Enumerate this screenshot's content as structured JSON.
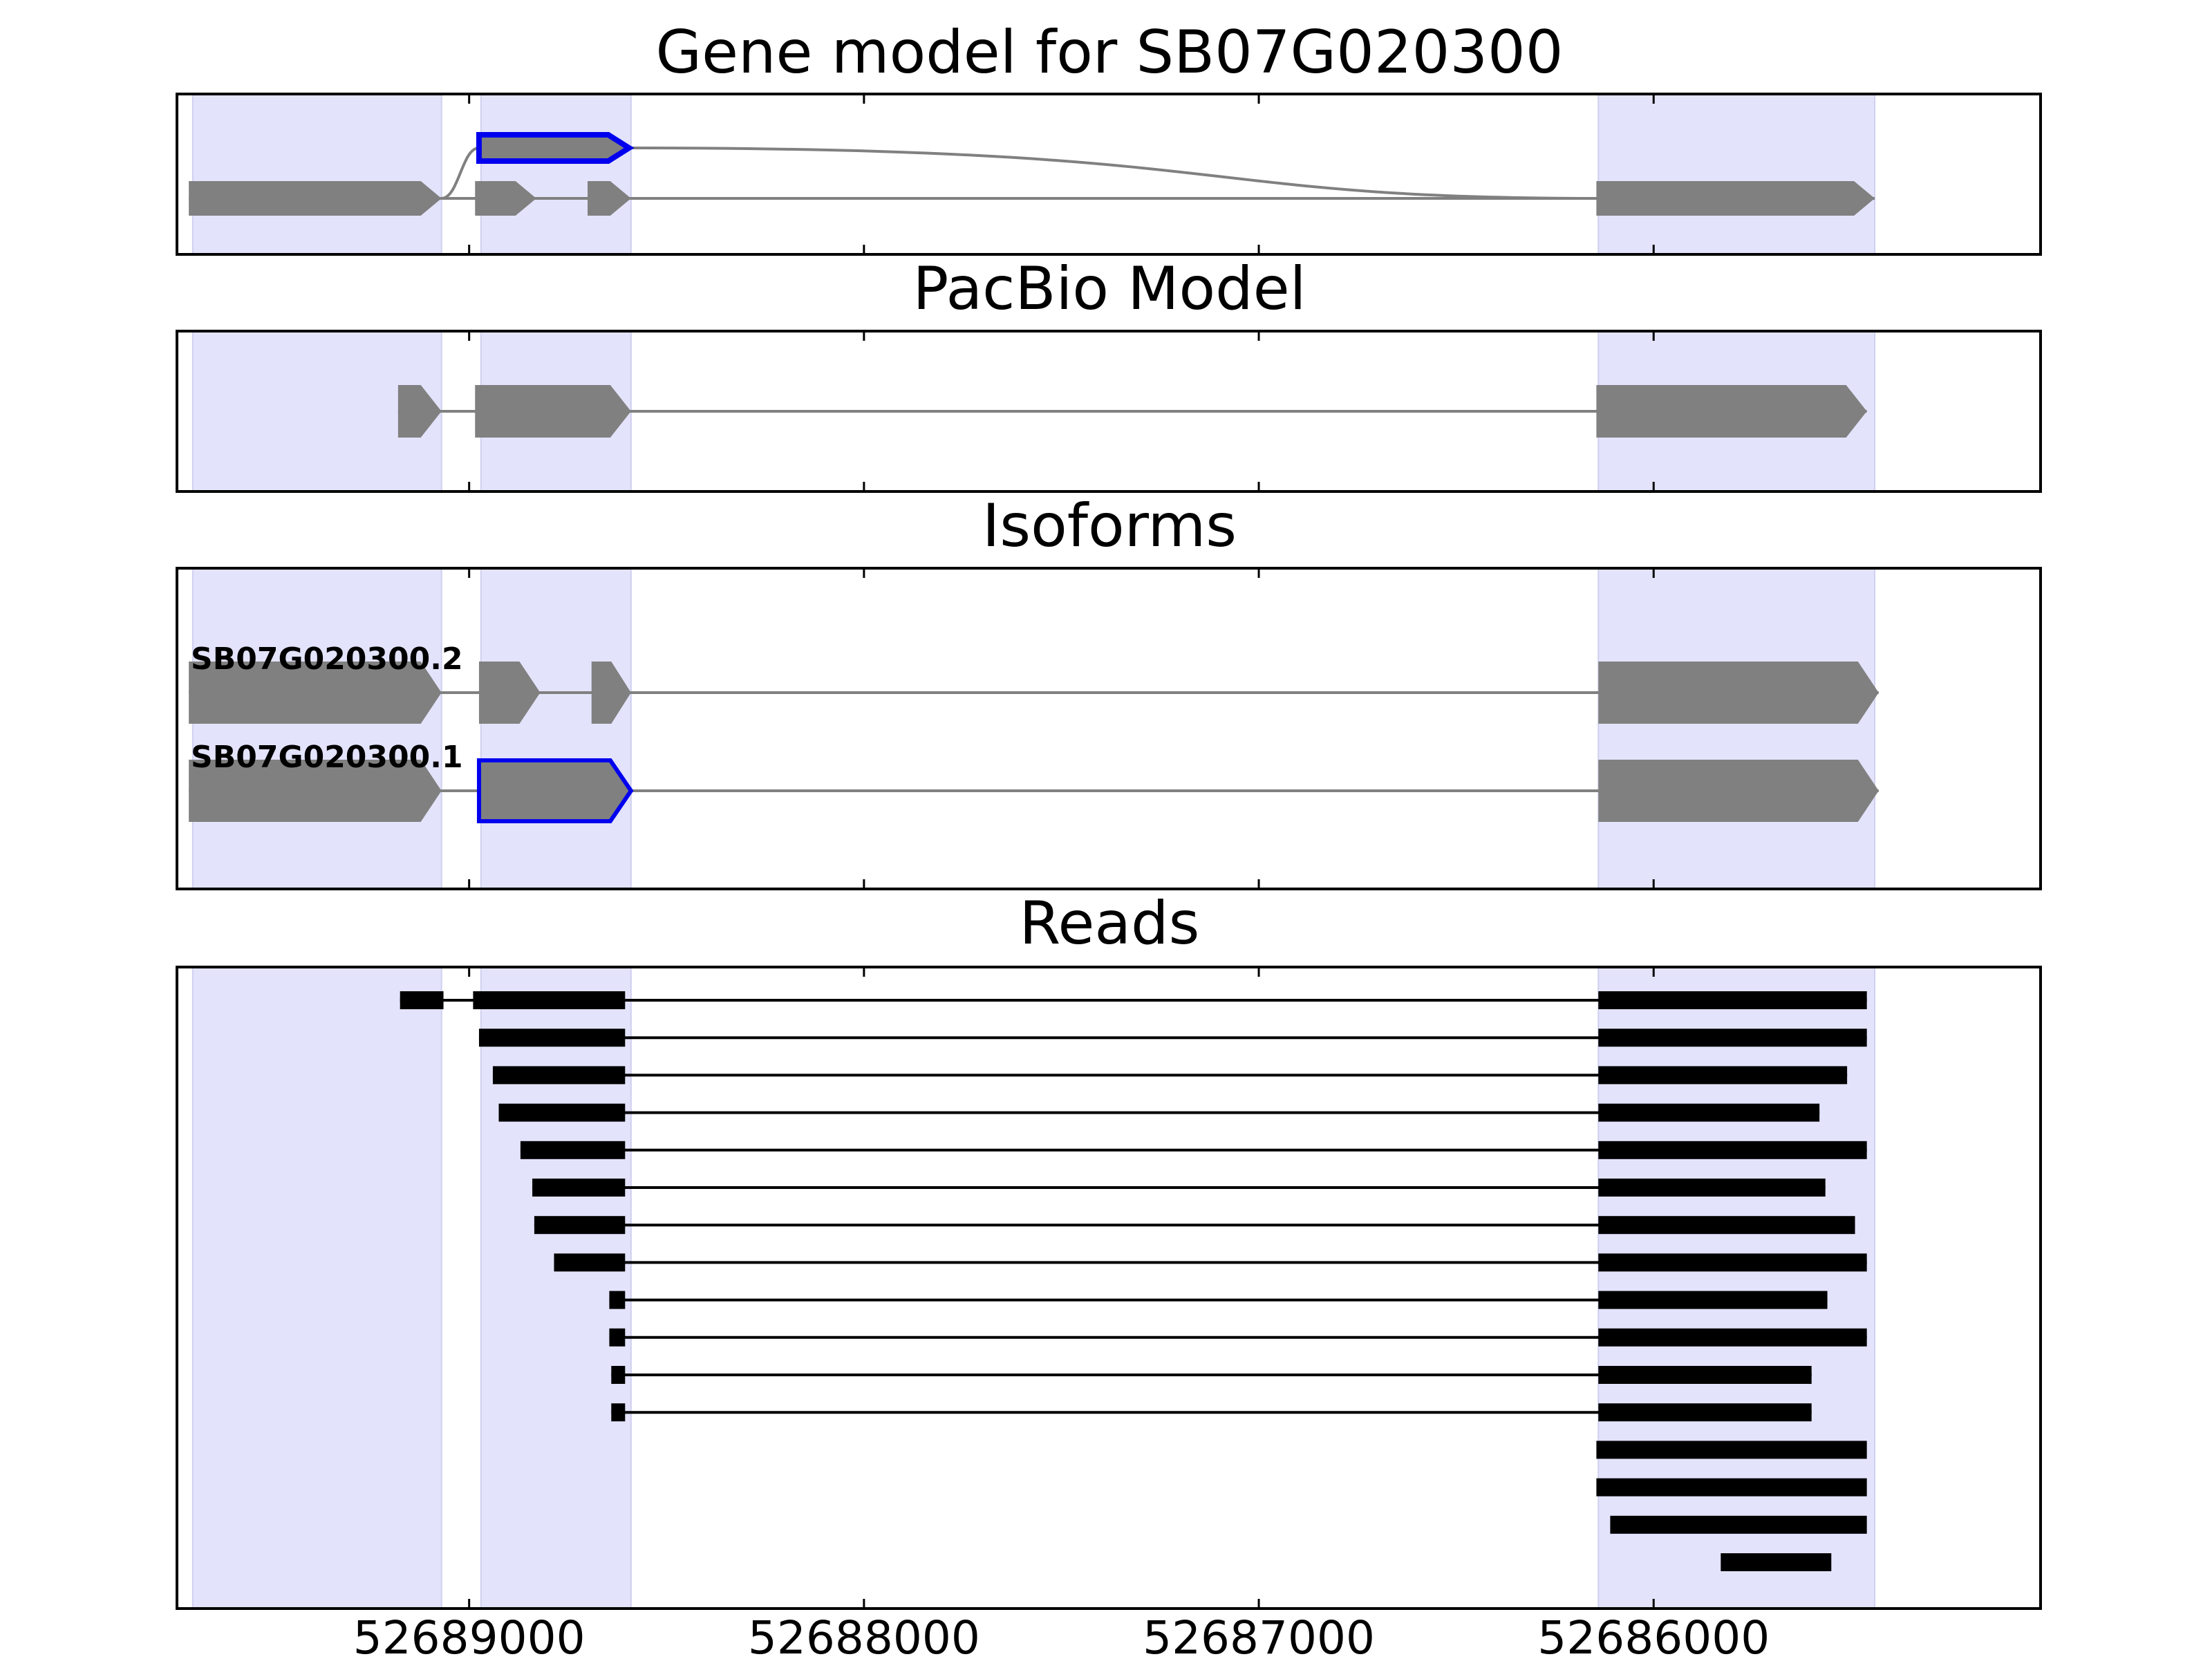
{
  "chart_data": {
    "type": "gene-model-tracks",
    "x_direction": "decreasing-left-to-right",
    "xlim": [
      52689740,
      52685020
    ],
    "xticks": [
      52689000,
      52688000,
      52687000,
      52686000
    ],
    "xtick_labels": [
      "52689000",
      "52688000",
      "52687000",
      "52686000"
    ],
    "colors": {
      "feature": "#808080",
      "highlight": "#0000ee",
      "read": "#000000",
      "shade": "#e3e3fb",
      "frame": "#000000"
    },
    "shaded_regions": [
      [
        52689700,
        52689070
      ],
      [
        52688970,
        52688590
      ],
      [
        52686140,
        52685440
      ]
    ],
    "panels": [
      {
        "id": "gene-model",
        "title": "Gene model for SB07G020300",
        "tracks": [
          {
            "level": "upper",
            "exons": [
              {
                "start": 52688975,
                "end": 52688595,
                "highlight": true
              }
            ],
            "connect_to_lower": [
              52689070,
              52686145
            ]
          },
          {
            "level": "lower",
            "exons": [
              {
                "start": 52689710,
                "end": 52689070
              },
              {
                "start": 52688985,
                "end": 52688830
              },
              {
                "start": 52688700,
                "end": 52688590
              },
              {
                "start": 52686145,
                "end": 52685440
              }
            ]
          }
        ]
      },
      {
        "id": "pacbio",
        "title": "PacBio Model",
        "tracks": [
          {
            "level": "middle",
            "exons": [
              {
                "start": 52689180,
                "end": 52689070
              },
              {
                "start": 52688985,
                "end": 52688590
              },
              {
                "start": 52686145,
                "end": 52685460
              }
            ]
          }
        ]
      },
      {
        "id": "isoforms",
        "title": "Isoforms",
        "tracks": [
          {
            "label": "SB07G020300.2",
            "exons": [
              {
                "start": 52689710,
                "end": 52689070
              },
              {
                "start": 52688975,
                "end": 52688820
              },
              {
                "start": 52688690,
                "end": 52688590
              },
              {
                "start": 52686140,
                "end": 52685430
              }
            ]
          },
          {
            "label": "SB07G020300.1",
            "exons": [
              {
                "start": 52689710,
                "end": 52689070
              },
              {
                "start": 52688975,
                "end": 52688590,
                "highlight": true
              },
              {
                "start": 52686140,
                "end": 52685430
              }
            ]
          }
        ]
      },
      {
        "id": "reads",
        "title": "Reads",
        "reads": [
          [
            [
              52689175,
              52689065
            ],
            [
              52688990,
              52688605
            ],
            [
              52686140,
              52685460
            ]
          ],
          [
            [
              52688975,
              52688605
            ],
            [
              52686140,
              52685460
            ]
          ],
          [
            [
              52688940,
              52688605
            ],
            [
              52686140,
              52685510
            ]
          ],
          [
            [
              52688925,
              52688605
            ],
            [
              52686140,
              52685580
            ]
          ],
          [
            [
              52688870,
              52688605
            ],
            [
              52686140,
              52685460
            ]
          ],
          [
            [
              52688840,
              52688605
            ],
            [
              52686140,
              52685565
            ]
          ],
          [
            [
              52688835,
              52688605
            ],
            [
              52686140,
              52685490
            ]
          ],
          [
            [
              52688785,
              52688605
            ],
            [
              52686140,
              52685460
            ]
          ],
          [
            [
              52688645,
              52688605
            ],
            [
              52686140,
              52685560
            ]
          ],
          [
            [
              52688645,
              52688605
            ],
            [
              52686140,
              52685460
            ]
          ],
          [
            [
              52688640,
              52688605
            ],
            [
              52686140,
              52685600
            ]
          ],
          [
            [
              52688640,
              52688605
            ],
            [
              52686140,
              52685600
            ]
          ],
          [
            [
              52686145,
              52685460
            ]
          ],
          [
            [
              52686145,
              52685460
            ]
          ],
          [
            [
              52686110,
              52685460
            ]
          ],
          [
            [
              52685830,
              52685550
            ]
          ]
        ]
      }
    ]
  }
}
